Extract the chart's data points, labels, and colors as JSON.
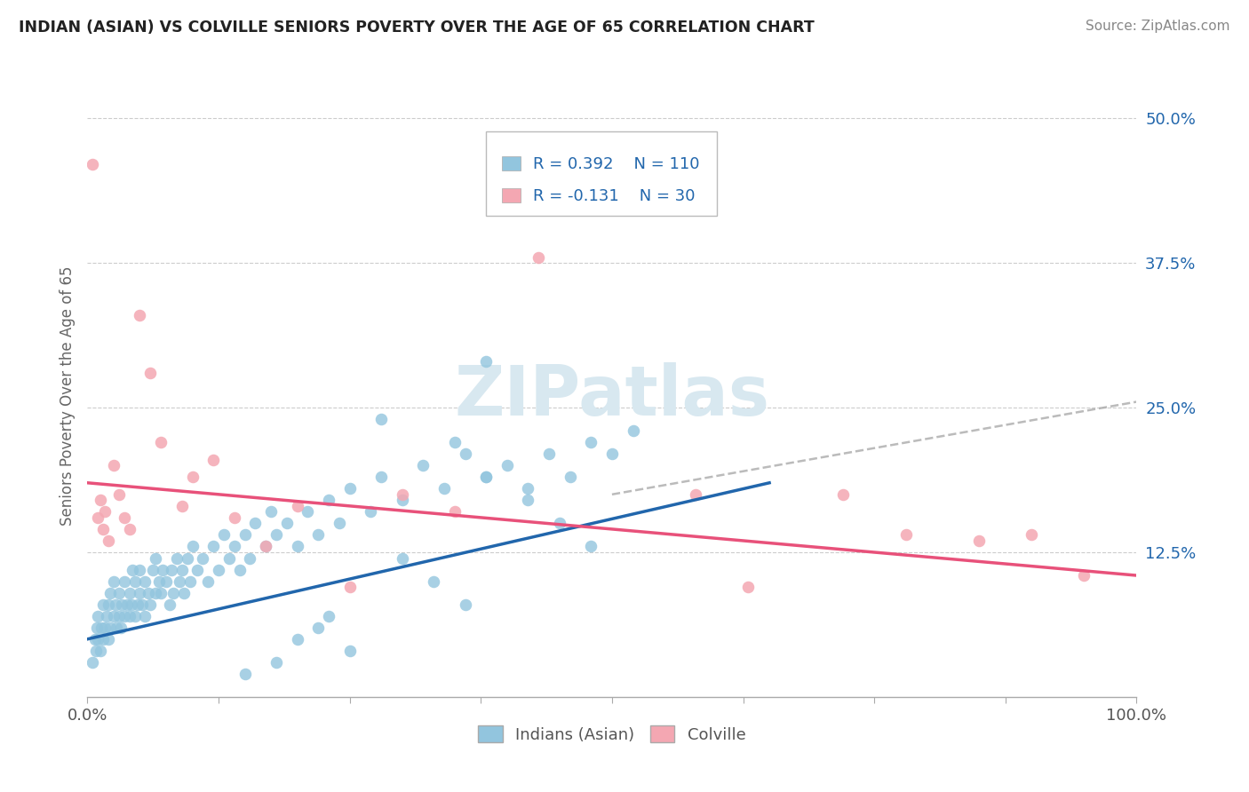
{
  "title": "INDIAN (ASIAN) VS COLVILLE SENIORS POVERTY OVER THE AGE OF 65 CORRELATION CHART",
  "source": "Source: ZipAtlas.com",
  "ylabel": "Seniors Poverty Over the Age of 65",
  "legend_blue_R": "R = 0.392",
  "legend_blue_N": "N = 110",
  "legend_pink_R": "R = -0.131",
  "legend_pink_N": "N = 30",
  "legend_label_blue": "Indians (Asian)",
  "legend_label_pink": "Colville",
  "blue_color": "#92c5de",
  "pink_color": "#f4a7b2",
  "blue_line_color": "#2166ac",
  "pink_line_color": "#e8517a",
  "dash_line_color": "#aaaaaa",
  "watermark_color": "#d8e8f0",
  "xlim": [
    0.0,
    1.0
  ],
  "ylim": [
    0.0,
    0.52
  ],
  "yticks": [
    0.125,
    0.25,
    0.375,
    0.5
  ],
  "ytick_labels": [
    "12.5%",
    "25.0%",
    "37.5%",
    "50.0%"
  ],
  "blue_line_x0": 0.0,
  "blue_line_y0": 0.05,
  "blue_line_x1": 0.65,
  "blue_line_y1": 0.185,
  "pink_line_x0": 0.0,
  "pink_line_y0": 0.185,
  "pink_line_x1": 1.0,
  "pink_line_y1": 0.105,
  "dash_line_x0": 0.5,
  "dash_line_y0": 0.175,
  "dash_line_x1": 1.0,
  "dash_line_y1": 0.255,
  "blue_x": [
    0.005,
    0.007,
    0.008,
    0.009,
    0.01,
    0.01,
    0.012,
    0.013,
    0.015,
    0.015,
    0.017,
    0.018,
    0.02,
    0.02,
    0.022,
    0.022,
    0.025,
    0.025,
    0.027,
    0.028,
    0.03,
    0.03,
    0.032,
    0.033,
    0.035,
    0.035,
    0.038,
    0.04,
    0.04,
    0.042,
    0.043,
    0.045,
    0.045,
    0.048,
    0.05,
    0.05,
    0.052,
    0.055,
    0.055,
    0.058,
    0.06,
    0.062,
    0.065,
    0.065,
    0.068,
    0.07,
    0.072,
    0.075,
    0.078,
    0.08,
    0.082,
    0.085,
    0.088,
    0.09,
    0.092,
    0.095,
    0.098,
    0.1,
    0.105,
    0.11,
    0.115,
    0.12,
    0.125,
    0.13,
    0.135,
    0.14,
    0.145,
    0.15,
    0.155,
    0.16,
    0.17,
    0.175,
    0.18,
    0.19,
    0.2,
    0.21,
    0.22,
    0.23,
    0.24,
    0.25,
    0.27,
    0.28,
    0.3,
    0.32,
    0.34,
    0.36,
    0.38,
    0.4,
    0.42,
    0.44,
    0.46,
    0.48,
    0.5,
    0.52,
    0.35,
    0.38,
    0.42,
    0.45,
    0.48,
    0.38,
    0.28,
    0.3,
    0.33,
    0.36,
    0.22,
    0.25,
    0.15,
    0.18,
    0.2,
    0.23
  ],
  "blue_y": [
    0.03,
    0.05,
    0.04,
    0.06,
    0.05,
    0.07,
    0.04,
    0.06,
    0.05,
    0.08,
    0.06,
    0.07,
    0.05,
    0.08,
    0.06,
    0.09,
    0.07,
    0.1,
    0.08,
    0.06,
    0.07,
    0.09,
    0.06,
    0.08,
    0.07,
    0.1,
    0.08,
    0.07,
    0.09,
    0.08,
    0.11,
    0.07,
    0.1,
    0.08,
    0.09,
    0.11,
    0.08,
    0.1,
    0.07,
    0.09,
    0.08,
    0.11,
    0.09,
    0.12,
    0.1,
    0.09,
    0.11,
    0.1,
    0.08,
    0.11,
    0.09,
    0.12,
    0.1,
    0.11,
    0.09,
    0.12,
    0.1,
    0.13,
    0.11,
    0.12,
    0.1,
    0.13,
    0.11,
    0.14,
    0.12,
    0.13,
    0.11,
    0.14,
    0.12,
    0.15,
    0.13,
    0.16,
    0.14,
    0.15,
    0.13,
    0.16,
    0.14,
    0.17,
    0.15,
    0.18,
    0.16,
    0.19,
    0.17,
    0.2,
    0.18,
    0.21,
    0.19,
    0.2,
    0.18,
    0.21,
    0.19,
    0.22,
    0.21,
    0.23,
    0.22,
    0.19,
    0.17,
    0.15,
    0.13,
    0.29,
    0.24,
    0.12,
    0.1,
    0.08,
    0.06,
    0.04,
    0.02,
    0.03,
    0.05,
    0.07
  ],
  "pink_x": [
    0.005,
    0.01,
    0.012,
    0.015,
    0.017,
    0.02,
    0.025,
    0.03,
    0.035,
    0.04,
    0.05,
    0.06,
    0.07,
    0.09,
    0.1,
    0.12,
    0.14,
    0.17,
    0.2,
    0.25,
    0.3,
    0.35,
    0.43,
    0.58,
    0.63,
    0.72,
    0.78,
    0.85,
    0.9,
    0.95
  ],
  "pink_y": [
    0.46,
    0.155,
    0.17,
    0.145,
    0.16,
    0.135,
    0.2,
    0.175,
    0.155,
    0.145,
    0.33,
    0.28,
    0.22,
    0.165,
    0.19,
    0.205,
    0.155,
    0.13,
    0.165,
    0.095,
    0.175,
    0.16,
    0.38,
    0.175,
    0.095,
    0.175,
    0.14,
    0.135,
    0.14,
    0.105
  ]
}
